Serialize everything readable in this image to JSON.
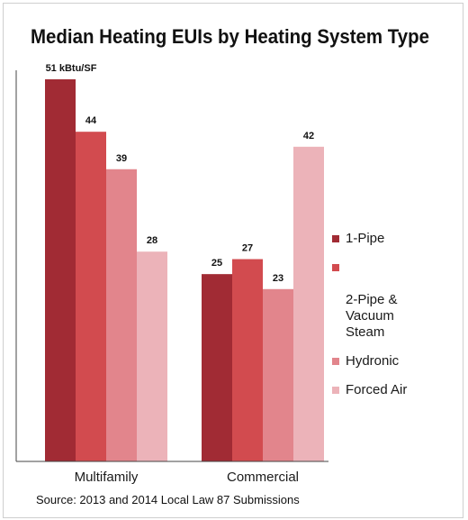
{
  "chart_data": {
    "type": "bar",
    "title": "Median Heating EUIs by Heating System Type",
    "categories": [
      "Multifamily",
      "Commercial"
    ],
    "series": [
      {
        "name": "1-Pipe",
        "color": "#a12b34",
        "values": [
          51,
          25
        ],
        "labels": [
          "51 kBtu/SF",
          "25"
        ]
      },
      {
        "name": "2-Pipe & Vacuum Steam",
        "color": "#d24b4f",
        "values": [
          44,
          27
        ],
        "labels": [
          "44",
          "27"
        ]
      },
      {
        "name": "Hydronic",
        "color": "#e2858c",
        "values": [
          39,
          23
        ],
        "labels": [
          "39",
          "23"
        ]
      },
      {
        "name": "Forced Air",
        "color": "#ecb3b9",
        "values": [
          28,
          42
        ],
        "labels": [
          "28",
          "42"
        ]
      }
    ],
    "ylim": [
      0,
      51
    ],
    "grid": false,
    "legend_position": "right"
  },
  "legend": {
    "items": [
      {
        "label": "1-Pipe",
        "color": "#a12b34"
      },
      {
        "label": "2-Pipe &\nVacuum\nSteam",
        "color": "#d24b4f"
      },
      {
        "label": "Hydronic",
        "color": "#e2858c"
      },
      {
        "label": "Forced Air",
        "color": "#ecb3b9"
      }
    ]
  },
  "source": "Source: 2013 and 2014 Local Law 87 Submissions"
}
